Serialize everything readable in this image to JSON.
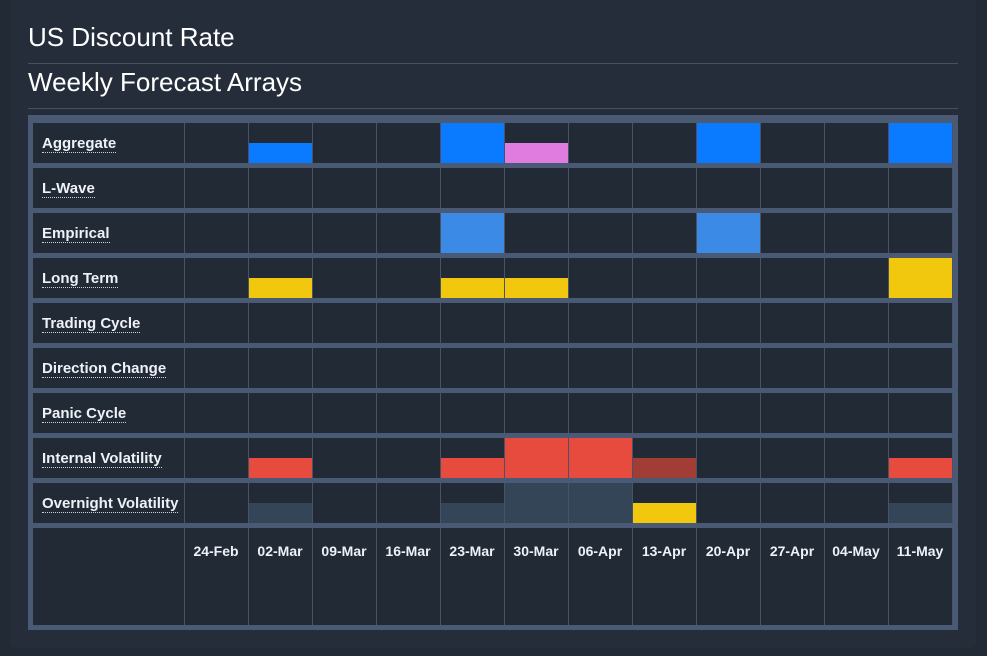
{
  "header": {
    "title": "US Discount Rate",
    "subtitle": "Weekly Forecast Arrays"
  },
  "colors": {
    "aggregate": "#0a7bff",
    "aggregate_alt": "#e07be0",
    "empirical": "#3a8ae6",
    "long_term": "#f2c80f",
    "volatility_red": "#e74b3e",
    "volatility_dark_red": "#a23d36",
    "overnight_slate": "#354558",
    "overnight_yellow": "#f2c80f"
  },
  "chart_data": {
    "type": "heatmap",
    "title": "Weekly Forecast Arrays",
    "x": [
      "24-Feb",
      "02-Mar",
      "09-Mar",
      "16-Mar",
      "23-Mar",
      "30-Mar",
      "06-Apr",
      "13-Apr",
      "20-Apr",
      "27-Apr",
      "04-May",
      "11-May"
    ],
    "value_scale": "bar height as fraction of row height (0 = empty)",
    "rows": [
      {
        "name": "Aggregate",
        "values": [
          0,
          0.5,
          0,
          0,
          1,
          0.5,
          0,
          0,
          1,
          0,
          0,
          1
        ],
        "colors": [
          null,
          "#0a7bff",
          null,
          null,
          "#0a7bff",
          "#e07be0",
          null,
          null,
          "#0a7bff",
          null,
          null,
          "#0a7bff"
        ]
      },
      {
        "name": "L-Wave",
        "values": [
          0,
          0,
          0,
          0,
          0,
          0,
          0,
          0,
          0,
          0,
          0,
          0
        ],
        "colors": [
          null,
          null,
          null,
          null,
          null,
          null,
          null,
          null,
          null,
          null,
          null,
          null
        ]
      },
      {
        "name": "Empirical",
        "values": [
          0,
          0,
          0,
          0,
          1,
          0,
          0,
          0,
          1,
          0,
          0,
          0
        ],
        "colors": [
          null,
          null,
          null,
          null,
          "#3a8ae6",
          null,
          null,
          null,
          "#3a8ae6",
          null,
          null,
          null
        ]
      },
      {
        "name": "Long Term",
        "values": [
          0,
          0.5,
          0,
          0,
          0.5,
          0.5,
          0,
          0,
          0,
          0,
          0,
          1
        ],
        "colors": [
          null,
          "#f2c80f",
          null,
          null,
          "#f2c80f",
          "#f2c80f",
          null,
          null,
          null,
          null,
          null,
          "#f2c80f"
        ]
      },
      {
        "name": "Trading Cycle",
        "values": [
          0,
          0,
          0,
          0,
          0,
          0,
          0,
          0,
          0,
          0,
          0,
          0
        ],
        "colors": [
          null,
          null,
          null,
          null,
          null,
          null,
          null,
          null,
          null,
          null,
          null,
          null
        ]
      },
      {
        "name": "Direction Change",
        "values": [
          0,
          0,
          0,
          0,
          0,
          0,
          0,
          0,
          0,
          0,
          0,
          0
        ],
        "colors": [
          null,
          null,
          null,
          null,
          null,
          null,
          null,
          null,
          null,
          null,
          null,
          null
        ]
      },
      {
        "name": "Panic Cycle",
        "values": [
          0,
          0,
          0,
          0,
          0,
          0,
          0,
          0,
          0,
          0,
          0,
          0
        ],
        "colors": [
          null,
          null,
          null,
          null,
          null,
          null,
          null,
          null,
          null,
          null,
          null,
          null
        ]
      },
      {
        "name": "Internal Volatility",
        "values": [
          0,
          0.5,
          0,
          0,
          0.5,
          1,
          1,
          0.5,
          0,
          0,
          0,
          0.5
        ],
        "colors": [
          null,
          "#e74b3e",
          null,
          null,
          "#e74b3e",
          "#e74b3e",
          "#e74b3e",
          "#a23d36",
          null,
          null,
          null,
          "#e74b3e"
        ]
      },
      {
        "name": "Overnight Volatility",
        "values": [
          0,
          0.5,
          0,
          0,
          0.5,
          1,
          1,
          0.5,
          0,
          0,
          0,
          0.5
        ],
        "colors": [
          null,
          "#354558",
          null,
          null,
          "#354558",
          "#354558",
          "#354558",
          "#f2c80f",
          null,
          null,
          null,
          "#354558"
        ]
      }
    ]
  }
}
